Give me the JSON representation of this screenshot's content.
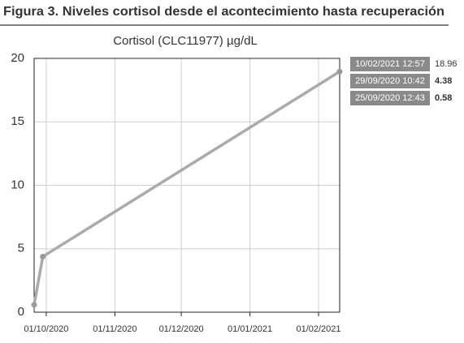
{
  "figure_title": "Figura 3. Niveles cortisol desde el acontecimiento hasta recuperación",
  "chart_data": {
    "type": "line",
    "title": "Cortisol (CLC11977) µg/dL",
    "series": [
      {
        "name": "Cortisol",
        "color": "#aaaaaa",
        "x": [
          "25/09/2020 12:43",
          "29/09/2020 10:42",
          "10/02/2021 12:57"
        ],
        "values": [
          0.58,
          4.38,
          18.96
        ],
        "bold": [
          true,
          true,
          false
        ]
      }
    ],
    "xlim": [
      "25/09/2020 12:43",
      "10/02/2021 12:57"
    ],
    "xticks": [
      "01/10/2020",
      "01/11/2020",
      "01/12/2020",
      "01/01/2021",
      "01/02/2021"
    ],
    "ylim": [
      0,
      20
    ],
    "yticks": [
      0,
      5,
      10,
      15,
      20
    ],
    "grid": true
  }
}
